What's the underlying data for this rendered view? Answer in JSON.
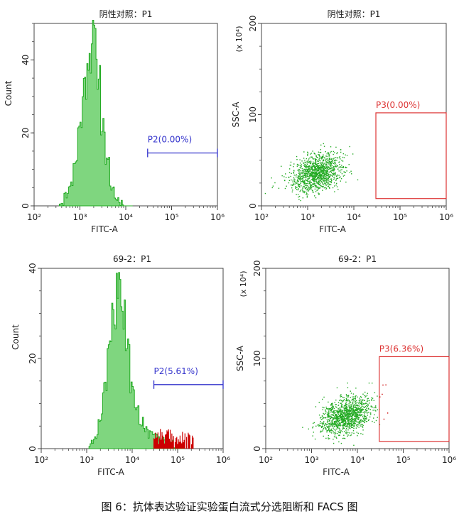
{
  "figure": {
    "caption": "图 6：抗体表达验证实验蛋白流式分选阻断和 FACS 图"
  },
  "colors": {
    "population": "#22aa22",
    "histogram_fill": "#7fd67f",
    "gate_p2": "#3333cc",
    "gate_p3": "#dd3333",
    "positive_events": "#cc0000"
  },
  "chart_data": [
    {
      "type": "histogram",
      "title": "阴性对照：P1",
      "xlabel": "FITC-A",
      "ylabel": "Count",
      "x_scale": "log",
      "xlim": [
        100,
        1000000
      ],
      "ylim": [
        0,
        50
      ],
      "yticks": [
        0,
        20,
        40
      ],
      "xtick_labels": [
        "10²",
        "10³",
        "10⁴",
        "10⁵",
        "10⁶"
      ],
      "bins_log10": [
        2.6,
        2.7,
        2.8,
        2.9,
        3.0,
        3.1,
        3.2,
        3.3,
        3.4,
        3.5,
        3.6,
        3.7,
        3.8,
        3.9,
        4.0,
        4.1
      ],
      "counts": [
        1,
        3,
        6,
        12,
        22,
        33,
        41,
        46,
        36,
        22,
        12,
        5,
        2,
        1,
        0,
        0
      ],
      "gate": {
        "name": "P2",
        "label": "P2(0.00%)",
        "percent": 0.0,
        "x_range": [
          30000,
          1000000
        ]
      }
    },
    {
      "type": "scatter",
      "title": "阴性对照：P1",
      "xlabel": "FITC-A",
      "ylabel": "SSC-A",
      "y_multiplier": "(x 10⁴)",
      "x_scale": "log",
      "xlim": [
        100,
        1000000
      ],
      "ylim": [
        0,
        200
      ],
      "yticks": [
        0,
        100,
        200
      ],
      "xtick_labels": [
        "10²",
        "10³",
        "10⁴",
        "10⁵",
        "10⁶"
      ],
      "population": {
        "n_events": 1200,
        "center_log10_x": 3.2,
        "sd_log10_x": 0.28,
        "center_y": 37,
        "sd_y": 10
      },
      "gate": {
        "name": "P3",
        "label": "P3(0.00%)",
        "percent": 0.0,
        "x_range": [
          30000,
          1000000
        ],
        "y_range": [
          8,
          102
        ]
      }
    },
    {
      "type": "histogram",
      "title": "69-2：P1",
      "xlabel": "FITC-A",
      "ylabel": "Count",
      "x_scale": "log",
      "xlim": [
        100,
        1000000
      ],
      "ylim": [
        0,
        40
      ],
      "yticks": [
        0,
        20,
        40
      ],
      "xtick_labels": [
        "10²",
        "10³",
        "10⁴",
        "10⁵",
        "10⁶"
      ],
      "bins_log10": [
        3.1,
        3.2,
        3.3,
        3.4,
        3.5,
        3.6,
        3.7,
        3.8,
        3.9,
        4.0,
        4.1,
        4.2,
        4.3,
        4.4,
        4.5,
        4.6,
        4.7,
        4.8,
        4.9,
        5.0,
        5.1
      ],
      "counts": [
        1,
        3,
        7,
        14,
        22,
        30,
        35,
        30,
        22,
        14,
        9,
        6,
        4,
        3,
        3,
        2,
        2,
        1,
        1,
        0,
        0
      ],
      "gate": {
        "name": "P2",
        "label": "P2(5.61%)",
        "percent": 5.61,
        "x_range": [
          30000,
          1000000
        ]
      }
    },
    {
      "type": "scatter",
      "title": "69-2：P1",
      "xlabel": "FITC-A",
      "ylabel": "SSC-A",
      "y_multiplier": "(x 10⁴)",
      "x_scale": "log",
      "xlim": [
        100,
        1000000
      ],
      "ylim": [
        0,
        200
      ],
      "yticks": [
        0,
        100,
        200
      ],
      "xtick_labels": [
        "10²",
        "10³",
        "10⁴",
        "10⁵",
        "10⁶"
      ],
      "population": {
        "n_events": 1200,
        "center_log10_x": 3.75,
        "sd_log10_x": 0.28,
        "center_y": 37,
        "sd_y": 10
      },
      "gate": {
        "name": "P3",
        "label": "P3(6.36%)",
        "percent": 6.36,
        "x_range": [
          30000,
          1000000
        ],
        "y_range": [
          8,
          102
        ]
      }
    }
  ]
}
